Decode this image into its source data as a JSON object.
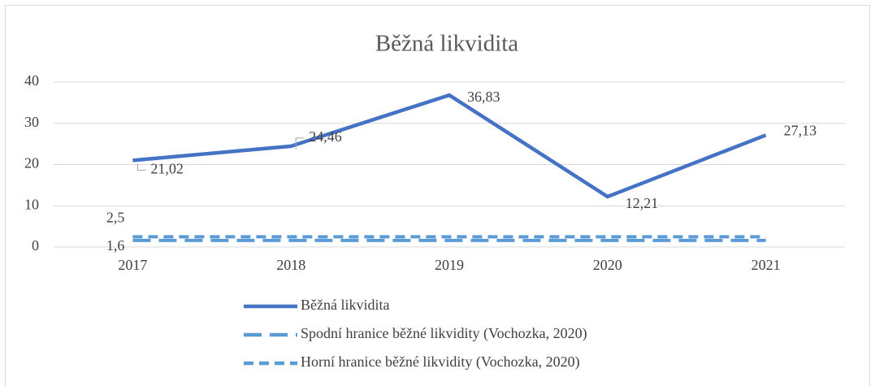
{
  "chart_data": {
    "type": "line",
    "title": "Běžná likvidita",
    "categories": [
      "2017",
      "2018",
      "2019",
      "2020",
      "2021"
    ],
    "series": [
      {
        "name": "Běžná likvidita",
        "color": "#4472c4",
        "dash": "solid",
        "values": [
          21.02,
          24.46,
          36.83,
          12.21,
          27.13
        ],
        "value_labels": [
          "21,02",
          "24,46",
          "36,83",
          "12,21",
          "27,13"
        ]
      },
      {
        "name": "Spodní hranice běžné likvidity (Vochozka, 2020)",
        "color": "#5b9bd5",
        "dash": "long",
        "values": [
          1.6,
          1.6,
          1.6,
          1.6,
          1.6
        ],
        "value_labels": [
          "1,6",
          null,
          null,
          null,
          null
        ]
      },
      {
        "name": "Horní hranice běžné likvidity (Vochozka, 2020)",
        "color": "#5b9bd5",
        "dash": "short",
        "values": [
          2.5,
          2.5,
          2.5,
          2.5,
          2.5
        ],
        "value_labels": [
          "2,5",
          null,
          null,
          null,
          null
        ]
      }
    ],
    "ylim": [
      0,
      40
    ],
    "yticks": [
      0,
      10,
      20,
      30,
      40
    ],
    "grid": true,
    "legend": "bottom"
  }
}
